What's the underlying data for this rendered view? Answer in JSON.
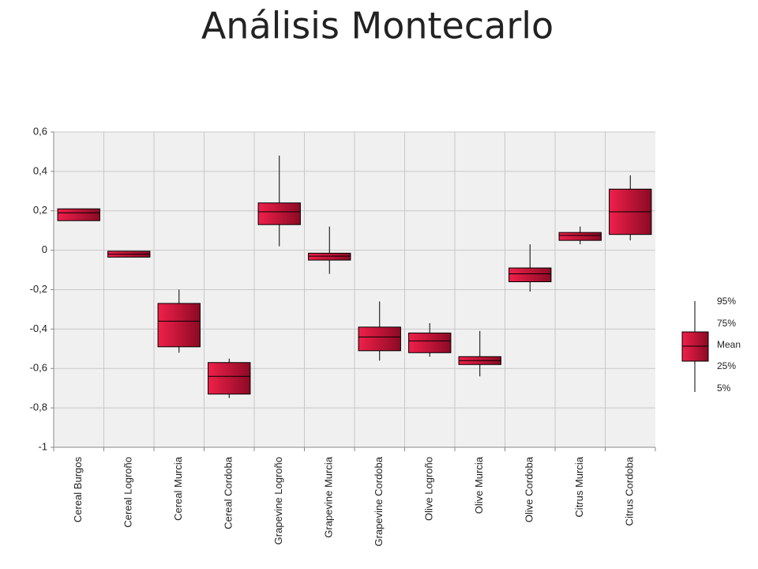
{
  "chart_data": {
    "type": "box",
    "title": "Análisis Montecarlo",
    "categories": [
      "Cereal Burgos",
      "Cereal Logroño",
      "Cereal Murcia",
      "Cereal Cordoba",
      "Grapevine Logroño",
      "Grapevine Murcia",
      "Grapevine Cordoba",
      "Olive Logroño",
      "Olive Murcia",
      "Olive Cordoba",
      "Citrus Murcia",
      "Citrus Cordoba"
    ],
    "p95": [
      0.21,
      -0.005,
      -0.2,
      -0.55,
      0.48,
      0.12,
      -0.26,
      -0.37,
      -0.41,
      0.03,
      0.12,
      0.38
    ],
    "q3": [
      0.21,
      -0.005,
      -0.27,
      -0.57,
      0.24,
      -0.015,
      -0.39,
      -0.42,
      -0.54,
      -0.09,
      0.09,
      0.31
    ],
    "mean": [
      0.19,
      -0.02,
      -0.36,
      -0.64,
      0.195,
      -0.03,
      -0.44,
      -0.46,
      -0.56,
      -0.12,
      0.075,
      0.195
    ],
    "q1": [
      0.15,
      -0.035,
      -0.49,
      -0.73,
      0.13,
      -0.05,
      -0.51,
      -0.52,
      -0.58,
      -0.16,
      0.05,
      0.08
    ],
    "p5": [
      0.15,
      -0.035,
      -0.52,
      -0.75,
      0.02,
      -0.12,
      -0.56,
      -0.54,
      -0.64,
      -0.21,
      0.03,
      0.05
    ],
    "color": "#d0163e",
    "ylim": [
      -1,
      0.6
    ],
    "yticks": [
      -1,
      {
        "value": -0.8,
        "label": "-0,8"
      },
      {
        "value": -0.6,
        "label": "-0,6"
      },
      {
        "value": -0.4,
        "label": "-0,4"
      },
      {
        "value": -0.2,
        "label": "-0,2"
      },
      0,
      {
        "value": 0.2,
        "label": "0,2"
      },
      {
        "value": 0.4,
        "label": "0,4"
      },
      {
        "value": 0.6,
        "label": "0,6"
      }
    ],
    "grid": true,
    "legend_labels": [
      "95%",
      "75%",
      "Mean",
      "25%",
      "5%"
    ]
  }
}
